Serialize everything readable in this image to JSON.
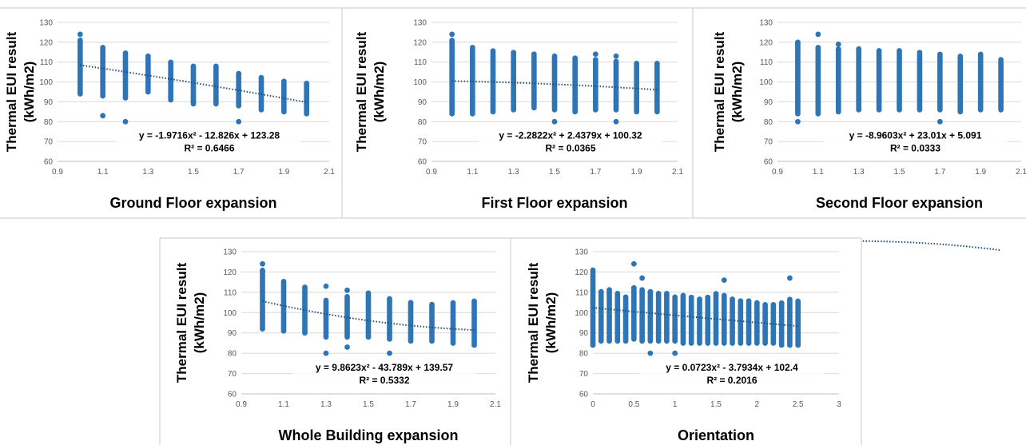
{
  "chart_data": [
    {
      "type": "scatter",
      "title": "",
      "ylabel_line1": "Thermal EUI result",
      "ylabel_line2": "(kWh/m2)",
      "xlabel": "Ground Floor expansion",
      "xlim": [
        0.9,
        2.1
      ],
      "xticks": [
        "0.9",
        "1.1",
        "1.3",
        "1.5",
        "1.7",
        "1.9",
        "2.1"
      ],
      "ylim": [
        60,
        130
      ],
      "yticks": [
        "60",
        "70",
        "80",
        "90",
        "100",
        "110",
        "120",
        "130"
      ],
      "grid": true,
      "color": "#2e75b6",
      "columns": [
        {
          "x": 1.0,
          "min": 94,
          "max": 121
        },
        {
          "x": 1.1,
          "min": 93,
          "max": 118
        },
        {
          "x": 1.2,
          "min": 92,
          "max": 115
        },
        {
          "x": 1.3,
          "min": 95,
          "max": 113
        },
        {
          "x": 1.4,
          "min": 91,
          "max": 110
        },
        {
          "x": 1.5,
          "min": 89,
          "max": 108
        },
        {
          "x": 1.6,
          "min": 89,
          "max": 108
        },
        {
          "x": 1.7,
          "min": 88,
          "max": 105
        },
        {
          "x": 1.8,
          "min": 86,
          "max": 103
        },
        {
          "x": 1.9,
          "min": 85,
          "max": 101
        },
        {
          "x": 2.0,
          "min": 84,
          "max": 100
        }
      ],
      "outliers": [
        {
          "x": 1.0,
          "y": 124
        },
        {
          "x": 1.1,
          "y": 83
        },
        {
          "x": 1.2,
          "y": 80
        },
        {
          "x": 1.7,
          "y": 80
        }
      ],
      "trendline": {
        "a": -1.9716,
        "b": -12.826,
        "c": 123.28
      },
      "equation": "y = -1.9716x² - 12.826x + 123.28",
      "r2": "R² = 0.6466"
    },
    {
      "type": "scatter",
      "title": "",
      "ylabel_line1": "Thermal EUI result",
      "ylabel_line2": "(kWh/m2)",
      "xlabel": "First Floor expansion",
      "xlim": [
        0.9,
        2.1
      ],
      "xticks": [
        "0.9",
        "1.1",
        "1.3",
        "1.5",
        "1.7",
        "1.9",
        "2.1"
      ],
      "ylim": [
        60,
        130
      ],
      "yticks": [
        "60",
        "70",
        "80",
        "90",
        "100",
        "110",
        "120",
        "130"
      ],
      "grid": true,
      "color": "#2e75b6",
      "columns": [
        {
          "x": 1.0,
          "min": 84,
          "max": 121
        },
        {
          "x": 1.1,
          "min": 84,
          "max": 118
        },
        {
          "x": 1.2,
          "min": 85,
          "max": 116
        },
        {
          "x": 1.3,
          "min": 86,
          "max": 115
        },
        {
          "x": 1.4,
          "min": 87,
          "max": 114
        },
        {
          "x": 1.5,
          "min": 86,
          "max": 113
        },
        {
          "x": 1.6,
          "min": 85,
          "max": 112
        },
        {
          "x": 1.7,
          "min": 86,
          "max": 112
        },
        {
          "x": 1.8,
          "min": 86,
          "max": 111
        },
        {
          "x": 1.9,
          "min": 85,
          "max": 110
        },
        {
          "x": 2.0,
          "min": 85,
          "max": 110
        }
      ],
      "outliers": [
        {
          "x": 1.0,
          "y": 124
        },
        {
          "x": 1.5,
          "y": 80
        },
        {
          "x": 1.8,
          "y": 80
        },
        {
          "x": 1.7,
          "y": 114
        },
        {
          "x": 1.8,
          "y": 113
        }
      ],
      "trendline": {
        "a": -2.2822,
        "b": 2.4379,
        "c": 100.32
      },
      "equation": "y = -2.2822x² + 2.4379x + 100.32",
      "r2": "R² = 0.0365"
    },
    {
      "type": "scatter",
      "title": "",
      "ylabel_line1": "Thermal EUI result",
      "ylabel_line2": "(kWh/m2)",
      "xlabel": "Second Floor expansion",
      "xlim": [
        0.9,
        2.1
      ],
      "xticks": [
        "0.9",
        "1.1",
        "1.3",
        "1.5",
        "1.7",
        "1.9",
        "2.1"
      ],
      "ylim": [
        60,
        130
      ],
      "yticks": [
        "60",
        "70",
        "80",
        "90",
        "100",
        "110",
        "120",
        "130"
      ],
      "grid": true,
      "color": "#2e75b6",
      "columns": [
        {
          "x": 1.0,
          "min": 84,
          "max": 120
        },
        {
          "x": 1.1,
          "min": 84,
          "max": 118
        },
        {
          "x": 1.2,
          "min": 85,
          "max": 117
        },
        {
          "x": 1.3,
          "min": 86,
          "max": 117
        },
        {
          "x": 1.4,
          "min": 86,
          "max": 116
        },
        {
          "x": 1.5,
          "min": 86,
          "max": 116
        },
        {
          "x": 1.6,
          "min": 86,
          "max": 115
        },
        {
          "x": 1.7,
          "min": 86,
          "max": 114
        },
        {
          "x": 1.8,
          "min": 85,
          "max": 113
        },
        {
          "x": 1.9,
          "min": 86,
          "max": 114
        },
        {
          "x": 2.0,
          "min": 86,
          "max": 112
        }
      ],
      "outliers": [
        {
          "x": 1.0,
          "y": 80
        },
        {
          "x": 1.1,
          "y": 124
        },
        {
          "x": 1.2,
          "y": 119
        },
        {
          "x": 1.7,
          "y": 80
        }
      ],
      "trendline": {
        "a": -8.9603,
        "b": 23.01,
        "c": 5.091
      },
      "equation": "y = -8.9603x² + 23.01x + 5.091",
      "r2": "R² = 0.0333"
    },
    {
      "type": "scatter",
      "title": "",
      "ylabel_line1": "Thermal EUI result",
      "ylabel_line2": "(kWh/m2)",
      "xlabel": "Whole Building expansion",
      "xlim": [
        0.9,
        2.1
      ],
      "xticks": [
        "0.9",
        "1.1",
        "1.3",
        "1.5",
        "1.7",
        "1.9",
        "2.1"
      ],
      "ylim": [
        60,
        130
      ],
      "yticks": [
        "60",
        "70",
        "80",
        "90",
        "100",
        "110",
        "120",
        "130"
      ],
      "grid": true,
      "color": "#2e75b6",
      "columns": [
        {
          "x": 1.0,
          "min": 92,
          "max": 121
        },
        {
          "x": 1.1,
          "min": 91,
          "max": 116
        },
        {
          "x": 1.2,
          "min": 90,
          "max": 113
        },
        {
          "x": 1.3,
          "min": 88,
          "max": 106
        },
        {
          "x": 1.4,
          "min": 88,
          "max": 108
        },
        {
          "x": 1.5,
          "min": 88,
          "max": 110
        },
        {
          "x": 1.6,
          "min": 87,
          "max": 107
        },
        {
          "x": 1.7,
          "min": 86,
          "max": 105
        },
        {
          "x": 1.8,
          "min": 86,
          "max": 104
        },
        {
          "x": 1.9,
          "min": 85,
          "max": 105
        },
        {
          "x": 2.0,
          "min": 84,
          "max": 106
        }
      ],
      "outliers": [
        {
          "x": 1.0,
          "y": 124
        },
        {
          "x": 1.3,
          "y": 80
        },
        {
          "x": 1.3,
          "y": 113
        },
        {
          "x": 1.4,
          "y": 83
        },
        {
          "x": 1.4,
          "y": 111
        },
        {
          "x": 1.6,
          "y": 80
        }
      ],
      "trendline": {
        "a": 9.8623,
        "b": -43.789,
        "c": 139.57
      },
      "equation": "y = 9.8623x² - 43.789x + 139.57",
      "r2": "R² = 0.5332"
    },
    {
      "type": "scatter",
      "title": "",
      "ylabel_line1": "Thermal EUI result",
      "ylabel_line2": "(kWh/m2)",
      "xlabel": "Orientation",
      "xlim": [
        0,
        3
      ],
      "xticks": [
        "0",
        "0.5",
        "1",
        "1.5",
        "2",
        "2.5",
        "3"
      ],
      "ylim": [
        60,
        130
      ],
      "yticks": [
        "60",
        "70",
        "80",
        "90",
        "100",
        "110",
        "120",
        "130"
      ],
      "grid": true,
      "color": "#2e75b6",
      "columns": [
        {
          "x": 0.0,
          "min": 84,
          "max": 121
        },
        {
          "x": 0.1,
          "min": 86,
          "max": 111
        },
        {
          "x": 0.2,
          "min": 86,
          "max": 112
        },
        {
          "x": 0.3,
          "min": 86,
          "max": 110
        },
        {
          "x": 0.4,
          "min": 86,
          "max": 108
        },
        {
          "x": 0.5,
          "min": 87,
          "max": 113
        },
        {
          "x": 0.6,
          "min": 86,
          "max": 112
        },
        {
          "x": 0.7,
          "min": 86,
          "max": 111
        },
        {
          "x": 0.8,
          "min": 86,
          "max": 110
        },
        {
          "x": 0.9,
          "min": 86,
          "max": 110
        },
        {
          "x": 1.0,
          "min": 86,
          "max": 108
        },
        {
          "x": 1.1,
          "min": 85,
          "max": 109
        },
        {
          "x": 1.2,
          "min": 85,
          "max": 108
        },
        {
          "x": 1.3,
          "min": 85,
          "max": 107
        },
        {
          "x": 1.4,
          "min": 85,
          "max": 108
        },
        {
          "x": 1.5,
          "min": 85,
          "max": 110
        },
        {
          "x": 1.6,
          "min": 85,
          "max": 109
        },
        {
          "x": 1.7,
          "min": 85,
          "max": 107
        },
        {
          "x": 1.8,
          "min": 85,
          "max": 106
        },
        {
          "x": 1.9,
          "min": 85,
          "max": 106
        },
        {
          "x": 2.0,
          "min": 85,
          "max": 105
        },
        {
          "x": 2.1,
          "min": 85,
          "max": 104
        },
        {
          "x": 2.2,
          "min": 85,
          "max": 104
        },
        {
          "x": 2.3,
          "min": 84,
          "max": 105
        },
        {
          "x": 2.4,
          "min": 84,
          "max": 107
        },
        {
          "x": 2.5,
          "min": 84,
          "max": 106
        }
      ],
      "outliers": [
        {
          "x": 0.5,
          "y": 124
        },
        {
          "x": 0.7,
          "y": 80
        },
        {
          "x": 1.0,
          "y": 80
        },
        {
          "x": 0.6,
          "y": 117
        },
        {
          "x": 1.6,
          "y": 116
        },
        {
          "x": 2.4,
          "y": 117
        }
      ],
      "trendline": {
        "a": 0.0723,
        "b": -3.7934,
        "c": 102.4
      },
      "equation": "y = 0.0723x² - 3.7934x + 102.4",
      "r2": "R² = 0.2016"
    }
  ]
}
